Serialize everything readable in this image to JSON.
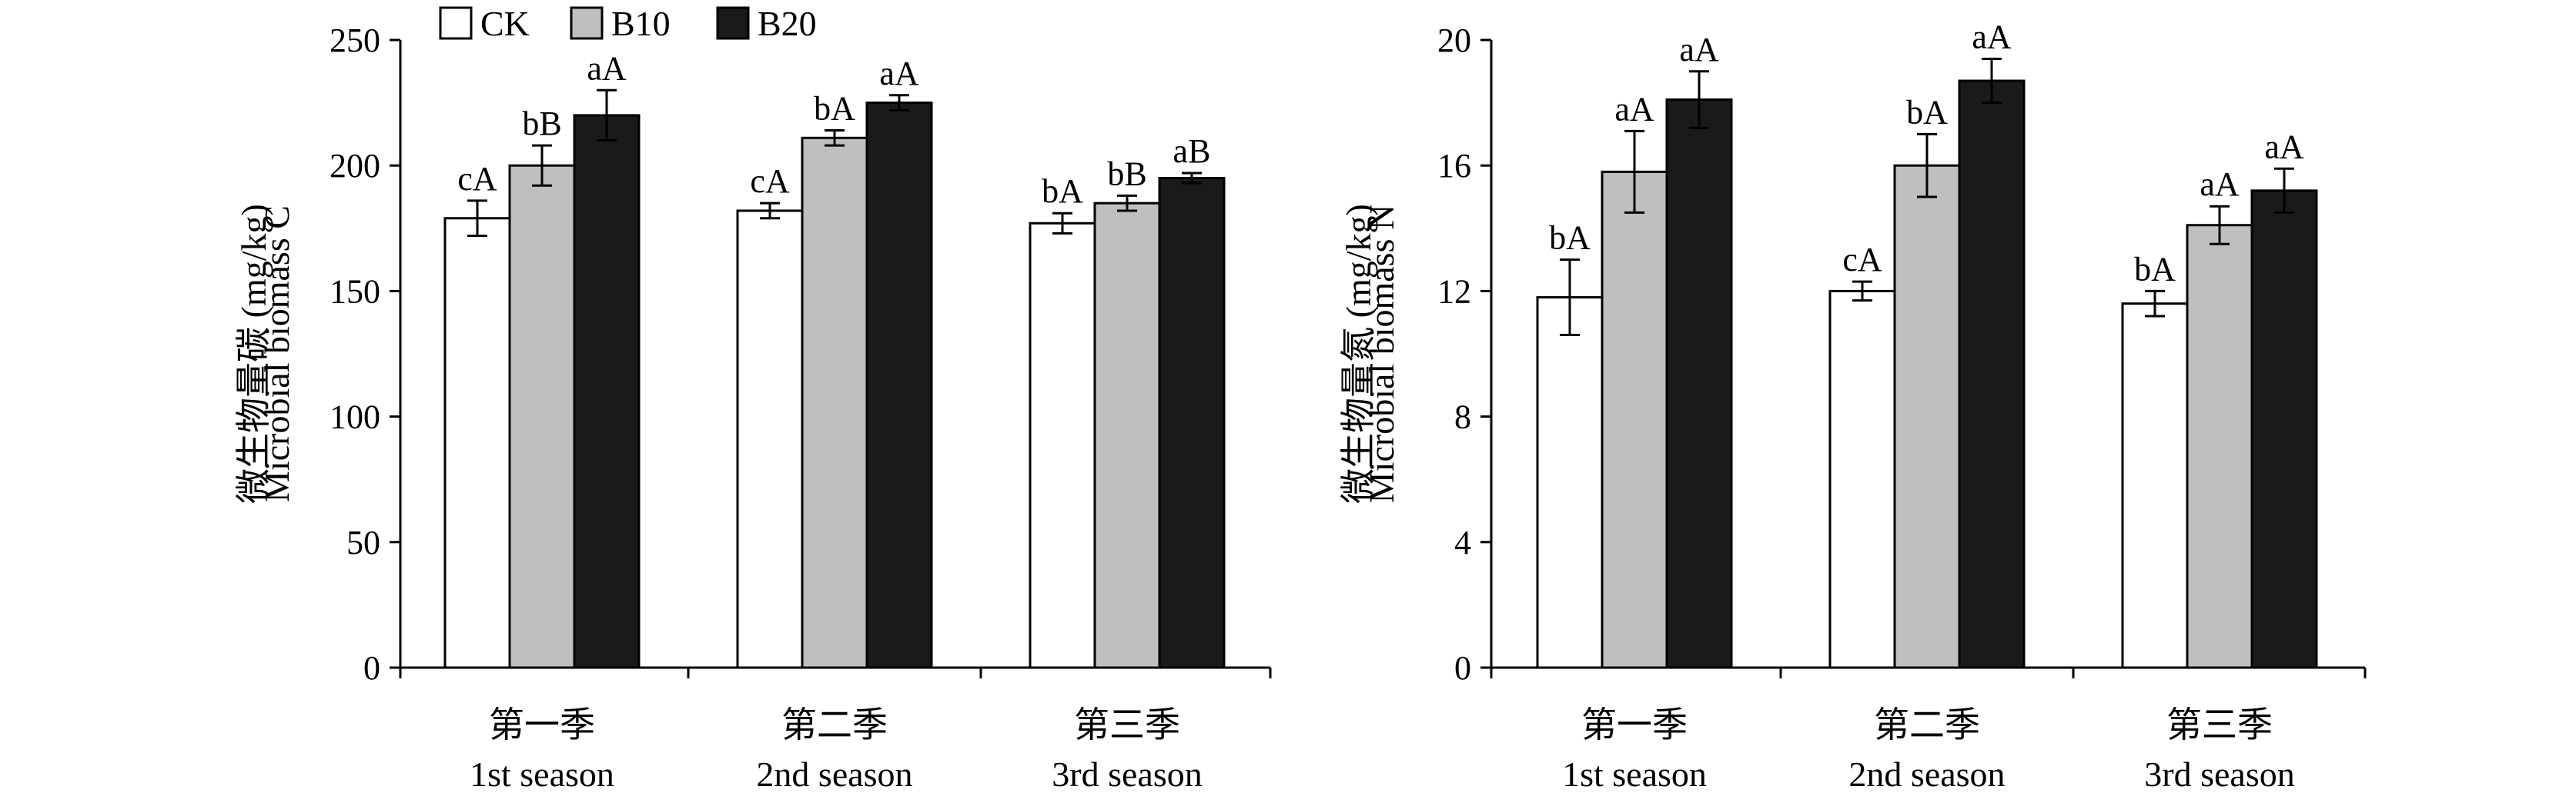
{
  "legend": {
    "placement": "top-left",
    "items": [
      {
        "name": "CK",
        "color": "#ffffff"
      },
      {
        "name": "B10",
        "color": "#bfbfbf"
      },
      {
        "name": "B20",
        "color": "#1a1a1a"
      }
    ]
  },
  "chart_data": [
    {
      "type": "bar",
      "title": "",
      "ylabel_cn": "微生物量碳 (mg/kg)",
      "ylabel_en": "Microbial biomass C",
      "ylim": [
        0,
        250
      ],
      "yticks": [
        "0",
        "50",
        "100",
        "150",
        "200",
        "250"
      ],
      "grid": false,
      "categories_cn": [
        "第一季",
        "第二季",
        "第三季"
      ],
      "categories_en": [
        "1st season",
        "2nd season",
        "3rd season"
      ],
      "series": [
        {
          "name": "CK",
          "color": "#ffffff",
          "values": [
            179,
            182,
            177
          ],
          "errors": [
            7,
            3,
            4
          ],
          "labels": [
            "cA",
            "cA",
            "bA"
          ]
        },
        {
          "name": "B10",
          "color": "#bfbfbf",
          "values": [
            200,
            211,
            185
          ],
          "errors": [
            8,
            3,
            3
          ],
          "labels": [
            "bB",
            "bA",
            "bB"
          ]
        },
        {
          "name": "B20",
          "color": "#1a1a1a",
          "values": [
            220,
            225,
            195
          ],
          "errors": [
            10,
            3,
            2
          ],
          "labels": [
            "aA",
            "aA",
            "aB"
          ]
        }
      ]
    },
    {
      "type": "bar",
      "title": "",
      "ylabel_cn": "微生物量氮 (mg/kg)",
      "ylabel_en": "Microbial biomass N",
      "ylim": [
        0,
        20
      ],
      "yticks": [
        "0",
        "4",
        "8",
        "12",
        "16",
        "20"
      ],
      "grid": false,
      "categories_cn": [
        "第一季",
        "第二季",
        "第三季"
      ],
      "categories_en": [
        "1st season",
        "2nd season",
        "3rd season"
      ],
      "series": [
        {
          "name": "CK",
          "color": "#ffffff",
          "values": [
            11.8,
            12.0,
            11.6
          ],
          "errors": [
            1.2,
            0.3,
            0.4
          ],
          "labels": [
            "bA",
            "cA",
            "bA"
          ]
        },
        {
          "name": "B10",
          "color": "#bfbfbf",
          "values": [
            15.8,
            16.0,
            14.1
          ],
          "errors": [
            1.3,
            1.0,
            0.6
          ],
          "labels": [
            "aA",
            "bA",
            "aA"
          ]
        },
        {
          "name": "B20",
          "color": "#1a1a1a",
          "values": [
            18.1,
            18.7,
            15.2
          ],
          "errors": [
            0.9,
            0.7,
            0.7
          ],
          "labels": [
            "aA",
            "aA",
            "aA"
          ]
        }
      ]
    }
  ]
}
